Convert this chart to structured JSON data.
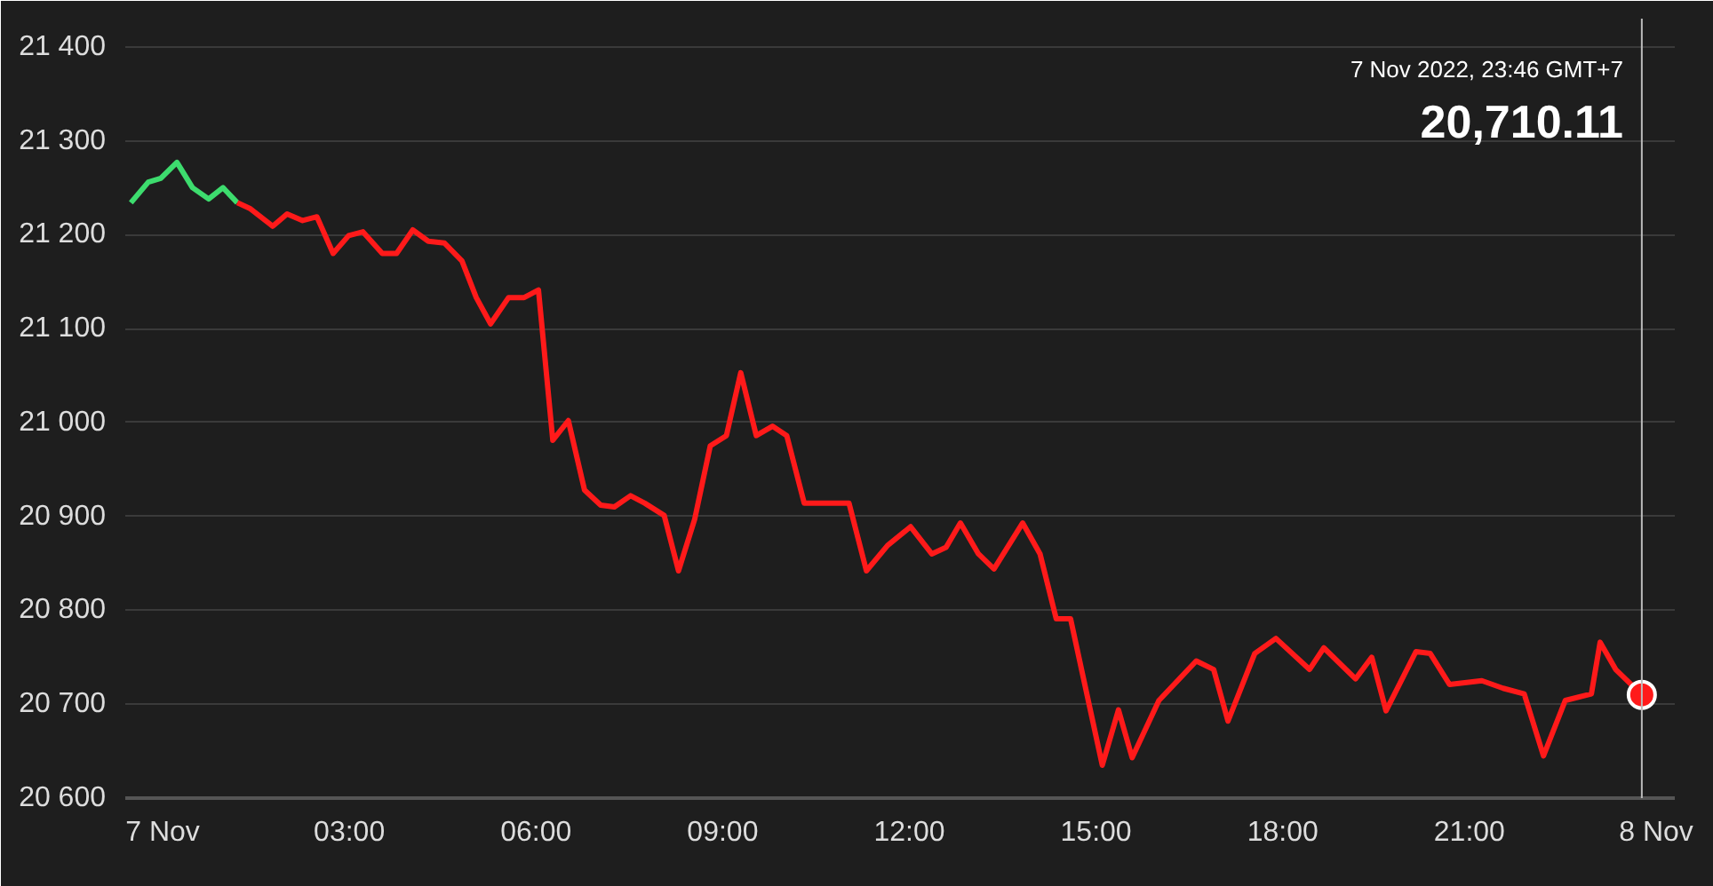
{
  "chart_data": {
    "type": "line",
    "ylim": [
      20600,
      21430
    ],
    "xlim": [
      -0.6,
      24.3
    ],
    "yticks": [
      {
        "value": 20600,
        "label": "20 600"
      },
      {
        "value": 20700,
        "label": "20 700"
      },
      {
        "value": 20800,
        "label": "20 800"
      },
      {
        "value": 20900,
        "label": "20 900"
      },
      {
        "value": 21000,
        "label": "21 000"
      },
      {
        "value": 21100,
        "label": "21 100"
      },
      {
        "value": 21200,
        "label": "21 200"
      },
      {
        "value": 21300,
        "label": "21 300"
      },
      {
        "value": 21400,
        "label": "21 400"
      }
    ],
    "xticks": [
      {
        "value": 0,
        "label": "7 Nov"
      },
      {
        "value": 3,
        "label": "03:00"
      },
      {
        "value": 6,
        "label": "06:00"
      },
      {
        "value": 9,
        "label": "09:00"
      },
      {
        "value": 12,
        "label": "12:00"
      },
      {
        "value": 15,
        "label": "15:00"
      },
      {
        "value": 18,
        "label": "18:00"
      },
      {
        "value": 21,
        "label": "21:00"
      },
      {
        "value": 24,
        "label": "8 Nov"
      }
    ],
    "grid": "y",
    "line_style": "solid",
    "marker": "none",
    "annotations": [
      "7 Nov 2022, 23:46 GMT+7",
      "20,710.11"
    ],
    "ref_lines": [
      {
        "axis": "x",
        "value": 23.77,
        "color": "#bbbbbb"
      }
    ],
    "series": [
      {
        "color": "#3ddc6e",
        "x": [
          -0.51,
          -0.23,
          -0.03,
          0.23,
          0.48,
          0.74,
          0.97,
          1.2
        ],
        "values": [
          21234,
          21256,
          21260,
          21277,
          21250,
          21238,
          21250,
          21234
        ]
      },
      {
        "color": "#ff1a1a",
        "x": [
          1.2,
          1.4,
          1.77,
          2.0,
          2.25,
          2.48,
          2.74,
          2.99,
          3.22,
          3.53,
          3.76,
          4.02,
          4.27,
          4.53,
          4.81,
          5.04,
          5.27,
          5.56,
          5.81,
          6.04,
          6.27,
          6.52,
          6.78,
          7.04,
          7.26,
          7.52,
          7.75,
          8.06,
          8.29,
          8.55,
          8.8,
          9.06,
          9.29,
          9.54,
          9.8,
          10.03,
          10.31,
          11.03,
          11.31,
          11.65,
          12.02,
          12.36,
          12.59,
          12.82,
          13.11,
          13.36,
          13.82,
          14.1,
          14.36,
          14.59,
          15.1,
          15.36,
          15.58,
          16.01,
          16.61,
          16.89,
          17.12,
          17.55,
          17.89,
          18.43,
          18.66,
          19.17,
          19.43,
          19.66,
          20.14,
          20.37,
          20.68,
          21.2,
          21.54,
          21.88,
          22.19,
          22.54,
          22.96,
          23.1,
          23.35,
          23.77
        ],
        "values": [
          21234,
          21228,
          21209,
          21222,
          21215,
          21219,
          21180,
          21199,
          21203,
          21180,
          21180,
          21205,
          21193,
          21191,
          21172,
          21133,
          21105,
          21133,
          21133,
          21141,
          20981,
          21002,
          20928,
          20912,
          20910,
          20922,
          20914,
          20901,
          20842,
          20897,
          20975,
          20986,
          21053,
          20986,
          20996,
          20986,
          20914,
          20914,
          20842,
          20869,
          20889,
          20860,
          20867,
          20893,
          20860,
          20844,
          20893,
          20860,
          20791,
          20791,
          20635,
          20694,
          20643,
          20704,
          20746,
          20737,
          20682,
          20754,
          20770,
          20737,
          20760,
          20727,
          20750,
          20693,
          20756,
          20754,
          20721,
          20725,
          20717,
          20711,
          20645,
          20704,
          20711,
          20766,
          20737,
          20710
        ]
      },
      {
        "type": "scatter",
        "color": "#ff1a1a",
        "marker": "circle",
        "x": [
          23.77
        ],
        "values": [
          20710
        ]
      }
    ]
  }
}
